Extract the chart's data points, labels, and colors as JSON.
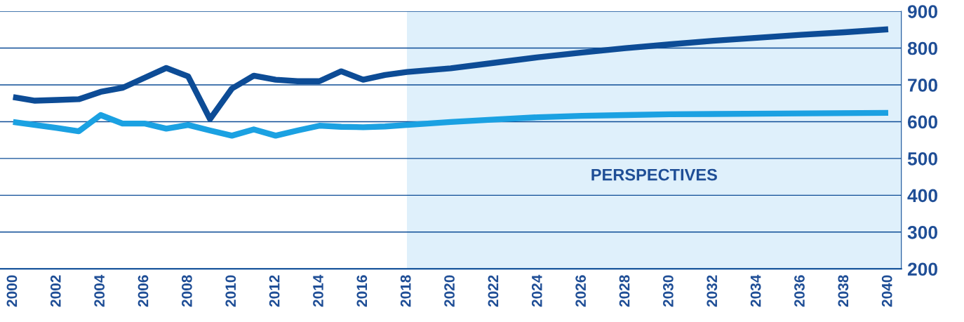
{
  "chart_data": {
    "type": "line",
    "series": [
      {
        "color": "#0d4c96",
        "x": [
          2000,
          2001,
          2002,
          2003,
          2004,
          2005,
          2006,
          2007,
          2008,
          2009,
          2010,
          2011,
          2012,
          2013,
          2014,
          2015,
          2016,
          2017,
          2018,
          2020,
          2022,
          2024,
          2026,
          2028,
          2030,
          2032,
          2034,
          2036,
          2038,
          2040
        ],
        "values": [
          667,
          657,
          659,
          661,
          681,
          692,
          719,
          746,
          723,
          607,
          690,
          725,
          714,
          710,
          710,
          737,
          714,
          727,
          735,
          745,
          760,
          775,
          788,
          800,
          810,
          820,
          828,
          836,
          843,
          851
        ]
      },
      {
        "color": "#1ba1e2",
        "x": [
          2000,
          2001,
          2002,
          2003,
          2004,
          2005,
          2006,
          2007,
          2008,
          2009,
          2010,
          2011,
          2012,
          2013,
          2014,
          2015,
          2016,
          2017,
          2018,
          2020,
          2022,
          2024,
          2026,
          2028,
          2030,
          2035,
          2040
        ],
        "values": [
          599,
          591,
          583,
          574,
          618,
          595,
          595,
          581,
          591,
          576,
          562,
          579,
          562,
          576,
          589,
          586,
          585,
          587,
          591,
          599,
          606,
          612,
          616,
          618,
          620,
          622,
          624
        ]
      }
    ],
    "xlim": [
      1999.4,
      2040.6
    ],
    "xticks": [
      2000,
      2002,
      2004,
      2006,
      2008,
      2010,
      2012,
      2014,
      2016,
      2018,
      2020,
      2022,
      2024,
      2026,
      2028,
      2030,
      2032,
      2034,
      2036,
      2038,
      2040
    ],
    "ylim": [
      200,
      900
    ],
    "yticks": [
      200,
      300,
      400,
      500,
      600,
      700,
      800,
      900
    ],
    "grid": "y",
    "marker": "none",
    "line_style": "solid",
    "bands": [
      {
        "axis": "x",
        "from": 2018,
        "to": 2040.6,
        "label": "PERSPECTIVES",
        "color": "#dff0fb"
      }
    ]
  }
}
